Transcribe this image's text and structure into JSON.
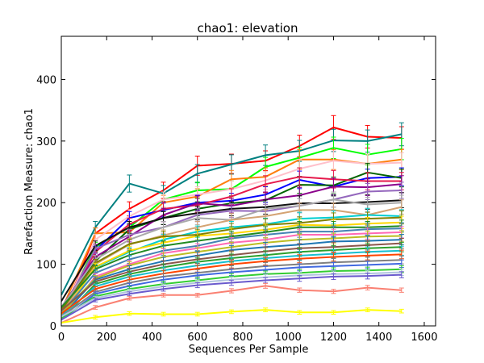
{
  "chart_data": {
    "type": "line",
    "title": "chao1: elevation",
    "xlabel": "Sequences Per Sample",
    "ylabel": "Rarefaction Measure: chao1",
    "xlim": [
      0,
      1650
    ],
    "ylim": [
      0,
      470
    ],
    "xticks": [
      0,
      200,
      400,
      600,
      800,
      1000,
      1200,
      1400,
      1600
    ],
    "yticks": [
      0,
      100,
      200,
      300,
      400
    ],
    "grid": false,
    "legend": "none",
    "x": [
      0,
      150,
      300,
      450,
      600,
      750,
      900,
      1050,
      1200,
      1350,
      1500
    ],
    "series": [
      {
        "color": "#ff0000",
        "values": [
          10,
          150,
          190,
          220,
          260,
          263,
          268,
          292,
          322,
          307,
          305
        ]
      },
      {
        "color": "#008080",
        "values": [
          50,
          160,
          231,
          215,
          247,
          262,
          277,
          284,
          301,
          300,
          311
        ]
      },
      {
        "color": "#00ff00",
        "values": [
          20,
          128,
          160,
          205,
          220,
          222,
          258,
          273,
          289,
          278,
          287
        ]
      },
      {
        "color": "#ff7f0e",
        "values": [
          25,
          150,
          152,
          200,
          210,
          238,
          242,
          270,
          270,
          263,
          270
        ]
      },
      {
        "color": "#ffc0cb",
        "values": [
          15,
          140,
          178,
          205,
          213,
          222,
          236,
          255,
          268,
          263,
          265
        ]
      },
      {
        "color": "#0000ff",
        "values": [
          10,
          122,
          175,
          188,
          200,
          203,
          213,
          237,
          226,
          240,
          242
        ]
      },
      {
        "color": "#006400",
        "values": [
          30,
          105,
          157,
          175,
          190,
          199,
          204,
          229,
          228,
          249,
          240
        ]
      },
      {
        "color": "#e6194b",
        "values": [
          20,
          120,
          165,
          190,
          196,
          210,
          230,
          242,
          238,
          235,
          235
        ]
      },
      {
        "color": "#8b008b",
        "values": [
          30,
          112,
          145,
          180,
          199,
          195,
          205,
          212,
          226,
          225,
          230
        ]
      },
      {
        "color": "#111111",
        "values": [
          40,
          130,
          160,
          175,
          183,
          190,
          193,
          199,
          199,
          201,
          204
        ]
      },
      {
        "color": "#9467bd",
        "values": [
          20,
          125,
          148,
          160,
          180,
          187,
          186,
          195,
          205,
          218,
          220
        ]
      },
      {
        "color": "#a9a9a9",
        "values": [
          30,
          108,
          140,
          160,
          175,
          172,
          190,
          195,
          205,
          197,
          200
        ]
      },
      {
        "color": "#d4a373",
        "values": [
          20,
          100,
          132,
          147,
          160,
          172,
          178,
          188,
          188,
          180,
          193
        ]
      },
      {
        "color": "#00ced1",
        "values": [
          15,
          95,
          120,
          140,
          153,
          160,
          165,
          174,
          176,
          180,
          178
        ]
      },
      {
        "color": "#808000",
        "values": [
          25,
          102,
          133,
          145,
          148,
          157,
          164,
          167,
          173,
          174,
          176
        ]
      },
      {
        "color": "#ffd700",
        "values": [
          15,
          96,
          122,
          135,
          146,
          150,
          156,
          164,
          163,
          166,
          168
        ]
      },
      {
        "color": "#228b22",
        "values": [
          30,
          92,
          115,
          130,
          138,
          145,
          152,
          160,
          160,
          160,
          162
        ]
      },
      {
        "color": "#4682b4",
        "values": [
          20,
          86,
          108,
          122,
          130,
          142,
          148,
          153,
          153,
          157,
          158
        ]
      },
      {
        "color": "#ff69b4",
        "values": [
          10,
          80,
          100,
          118,
          126,
          135,
          140,
          148,
          148,
          150,
          152
        ]
      },
      {
        "color": "#bcbd22",
        "values": [
          20,
          77,
          98,
          112,
          120,
          128,
          135,
          140,
          142,
          145,
          146
        ]
      },
      {
        "color": "#1f77b4",
        "values": [
          15,
          75,
          92,
          105,
          114,
          123,
          128,
          132,
          137,
          138,
          140
        ]
      },
      {
        "color": "#8c564b",
        "values": [
          25,
          72,
          88,
          100,
          108,
          115,
          121,
          126,
          128,
          131,
          134
        ]
      },
      {
        "color": "#2ca02c",
        "values": [
          10,
          68,
          84,
          95,
          104,
          110,
          115,
          120,
          123,
          126,
          128
        ]
      },
      {
        "color": "#17becf",
        "values": [
          15,
          64,
          80,
          90,
          98,
          105,
          110,
          114,
          117,
          120,
          122
        ]
      },
      {
        "color": "#ff4500",
        "values": [
          20,
          60,
          75,
          85,
          93,
          100,
          105,
          109,
          112,
          114,
          116
        ]
      },
      {
        "color": "#7f7f7f",
        "values": [
          15,
          55,
          70,
          80,
          86,
          92,
          97,
          100,
          103,
          105,
          107
        ]
      },
      {
        "color": "#4169e1",
        "values": [
          10,
          52,
          65,
          75,
          82,
          87,
          91,
          95,
          97,
          99,
          101
        ]
      },
      {
        "color": "#32cd32",
        "values": [
          12,
          48,
          60,
          68,
          74,
          80,
          84,
          86,
          89,
          90,
          92
        ]
      },
      {
        "color": "#b0c4de",
        "values": [
          15,
          45,
          56,
          64,
          70,
          75,
          79,
          82,
          84,
          85,
          87
        ]
      },
      {
        "color": "#6a5acd",
        "values": [
          10,
          42,
          52,
          60,
          66,
          70,
          74,
          77,
          80,
          81,
          83
        ]
      },
      {
        "color": "#fa8072",
        "values": [
          5,
          30,
          45,
          50,
          50,
          57,
          65,
          58,
          56,
          62,
          58
        ]
      },
      {
        "color": "#ffff00",
        "values": [
          5,
          14,
          20,
          19,
          19,
          23,
          26,
          22,
          22,
          26,
          24
        ]
      }
    ]
  }
}
